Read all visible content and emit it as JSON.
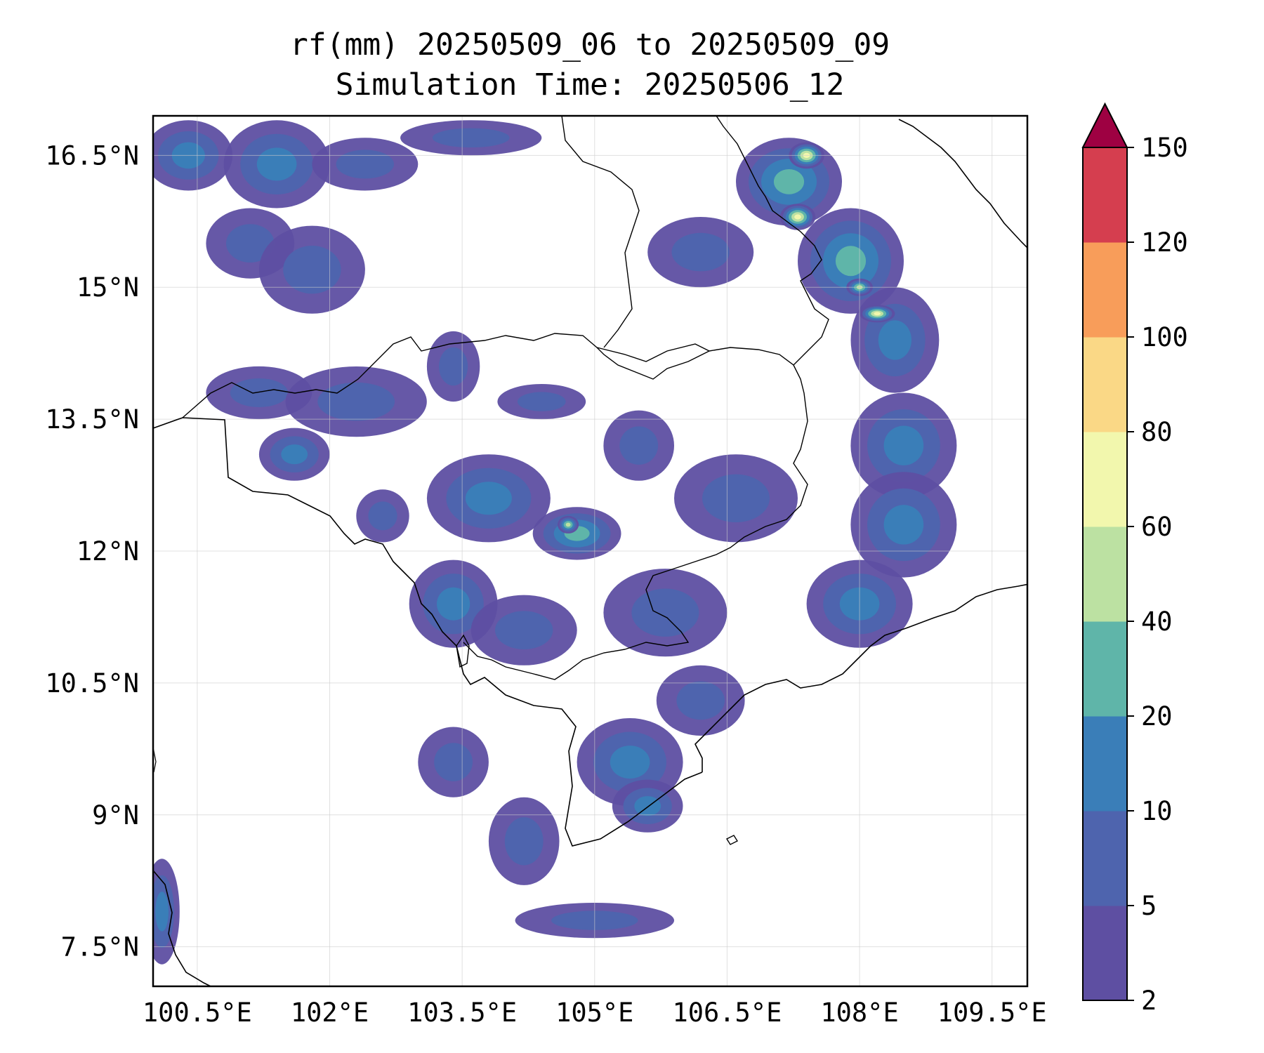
{
  "title": {
    "line1": "rf(mm) 20250509_06 to 20250509_09",
    "line2": "Simulation Time: 20250506_12"
  },
  "map": {
    "lon_range": [
      100.0,
      109.9
    ],
    "lat_range": [
      7.05,
      16.95
    ],
    "gridlines": true,
    "x_ticks": [
      {
        "value": 100.5,
        "label": "100.5°E"
      },
      {
        "value": 102.0,
        "label": "102°E"
      },
      {
        "value": 103.5,
        "label": "103.5°E"
      },
      {
        "value": 105.0,
        "label": "105°E"
      },
      {
        "value": 106.5,
        "label": "106.5°E"
      },
      {
        "value": 108.0,
        "label": "108°E"
      },
      {
        "value": 109.5,
        "label": "109.5°E"
      }
    ],
    "y_ticks": [
      {
        "value": 7.5,
        "label": "7.5°N"
      },
      {
        "value": 9.0,
        "label": "9°N"
      },
      {
        "value": 10.5,
        "label": "10.5°N"
      },
      {
        "value": 12.0,
        "label": "12°N"
      },
      {
        "value": 13.5,
        "label": "13.5°N"
      },
      {
        "value": 15.0,
        "label": "15°N"
      },
      {
        "value": 16.5,
        "label": "16.5°N"
      }
    ]
  },
  "colorbar": {
    "levels": [
      "2",
      "5",
      "10",
      "20",
      "40",
      "60",
      "80",
      "100",
      "120",
      "150"
    ],
    "colors": [
      "#5e4fa2",
      "#4e64ae",
      "#3a7eb8",
      "#5fb5a9",
      "#bce1a2",
      "#f2f7ad",
      "#fad886",
      "#f89d5a",
      "#d53e4f"
    ],
    "extend_color": "#9e0142",
    "extend": "max"
  },
  "chart_data": {
    "type": "heatmap",
    "variable": "rf(mm)",
    "title": "rf(mm) 20250509_06 to 20250509_09",
    "subtitle": "Simulation Time: 20250506_12",
    "x_range_degE": [
      100.0,
      109.9
    ],
    "y_range_degN": [
      7.05,
      16.95
    ],
    "contour_levels_mm": [
      2,
      5,
      10,
      20,
      40,
      60,
      80,
      100,
      120,
      150
    ],
    "extend": "max",
    "rain_areas": [
      {
        "lon": 100.4,
        "lat": 16.5,
        "rx": 0.5,
        "ry": 0.4,
        "level": 2
      },
      {
        "lon": 101.4,
        "lat": 16.4,
        "rx": 0.6,
        "ry": 0.5,
        "level": 2
      },
      {
        "lon": 101.1,
        "lat": 15.5,
        "rx": 0.5,
        "ry": 0.4,
        "level": 1
      },
      {
        "lon": 101.8,
        "lat": 15.2,
        "rx": 0.6,
        "ry": 0.5,
        "level": 1
      },
      {
        "lon": 102.4,
        "lat": 16.4,
        "rx": 0.6,
        "ry": 0.3,
        "level": 1
      },
      {
        "lon": 103.6,
        "lat": 16.7,
        "rx": 0.8,
        "ry": 0.2,
        "level": 1
      },
      {
        "lon": 101.2,
        "lat": 13.8,
        "rx": 0.6,
        "ry": 0.3,
        "level": 1
      },
      {
        "lon": 102.3,
        "lat": 13.7,
        "rx": 0.8,
        "ry": 0.4,
        "level": 1
      },
      {
        "lon": 101.6,
        "lat": 13.1,
        "rx": 0.4,
        "ry": 0.3,
        "level": 2
      },
      {
        "lon": 102.6,
        "lat": 12.4,
        "rx": 0.3,
        "ry": 0.3,
        "level": 1
      },
      {
        "lon": 103.8,
        "lat": 12.6,
        "rx": 0.7,
        "ry": 0.5,
        "level": 2
      },
      {
        "lon": 104.8,
        "lat": 12.2,
        "rx": 0.5,
        "ry": 0.3,
        "level": 3
      },
      {
        "lon": 103.4,
        "lat": 11.4,
        "rx": 0.5,
        "ry": 0.5,
        "level": 2
      },
      {
        "lon": 104.2,
        "lat": 11.1,
        "rx": 0.6,
        "ry": 0.4,
        "level": 1
      },
      {
        "lon": 103.4,
        "lat": 14.1,
        "rx": 0.3,
        "ry": 0.4,
        "level": 1
      },
      {
        "lon": 104.4,
        "lat": 13.7,
        "rx": 0.5,
        "ry": 0.2,
        "level": 1
      },
      {
        "lon": 105.5,
        "lat": 13.2,
        "rx": 0.4,
        "ry": 0.4,
        "level": 1
      },
      {
        "lon": 106.6,
        "lat": 12.6,
        "rx": 0.7,
        "ry": 0.5,
        "level": 1
      },
      {
        "lon": 105.8,
        "lat": 11.3,
        "rx": 0.7,
        "ry": 0.5,
        "level": 1
      },
      {
        "lon": 106.2,
        "lat": 10.3,
        "rx": 0.5,
        "ry": 0.4,
        "level": 1
      },
      {
        "lon": 105.4,
        "lat": 9.6,
        "rx": 0.6,
        "ry": 0.5,
        "level": 2
      },
      {
        "lon": 105.6,
        "lat": 9.1,
        "rx": 0.4,
        "ry": 0.3,
        "level": 2
      },
      {
        "lon": 104.2,
        "lat": 8.7,
        "rx": 0.4,
        "ry": 0.5,
        "level": 1
      },
      {
        "lon": 103.4,
        "lat": 9.6,
        "rx": 0.4,
        "ry": 0.4,
        "level": 1
      },
      {
        "lon": 105.0,
        "lat": 7.8,
        "rx": 0.9,
        "ry": 0.2,
        "level": 1
      },
      {
        "lon": 100.1,
        "lat": 7.9,
        "rx": 0.2,
        "ry": 0.6,
        "level": 2
      },
      {
        "lon": 106.2,
        "lat": 15.4,
        "rx": 0.6,
        "ry": 0.4,
        "level": 1
      },
      {
        "lon": 107.2,
        "lat": 16.2,
        "rx": 0.6,
        "ry": 0.5,
        "level": 3
      },
      {
        "lon": 107.9,
        "lat": 15.3,
        "rx": 0.6,
        "ry": 0.6,
        "level": 3
      },
      {
        "lon": 108.4,
        "lat": 14.4,
        "rx": 0.5,
        "ry": 0.6,
        "level": 2
      },
      {
        "lon": 108.5,
        "lat": 13.2,
        "rx": 0.6,
        "ry": 0.6,
        "level": 2
      },
      {
        "lon": 108.5,
        "lat": 12.3,
        "rx": 0.6,
        "ry": 0.6,
        "level": 2
      },
      {
        "lon": 108.0,
        "lat": 11.4,
        "rx": 0.6,
        "ry": 0.5,
        "level": 2
      },
      {
        "lon": 107.4,
        "lat": 16.5,
        "rx": 0.2,
        "ry": 0.15,
        "level": 5
      },
      {
        "lon": 107.3,
        "lat": 15.8,
        "rx": 0.2,
        "ry": 0.15,
        "level": 5
      },
      {
        "lon": 108.2,
        "lat": 14.7,
        "rx": 0.2,
        "ry": 0.1,
        "level": 5
      },
      {
        "lon": 108.0,
        "lat": 15.0,
        "rx": 0.15,
        "ry": 0.1,
        "level": 4
      },
      {
        "lon": 104.7,
        "lat": 12.3,
        "rx": 0.12,
        "ry": 0.1,
        "level": 4
      }
    ]
  }
}
